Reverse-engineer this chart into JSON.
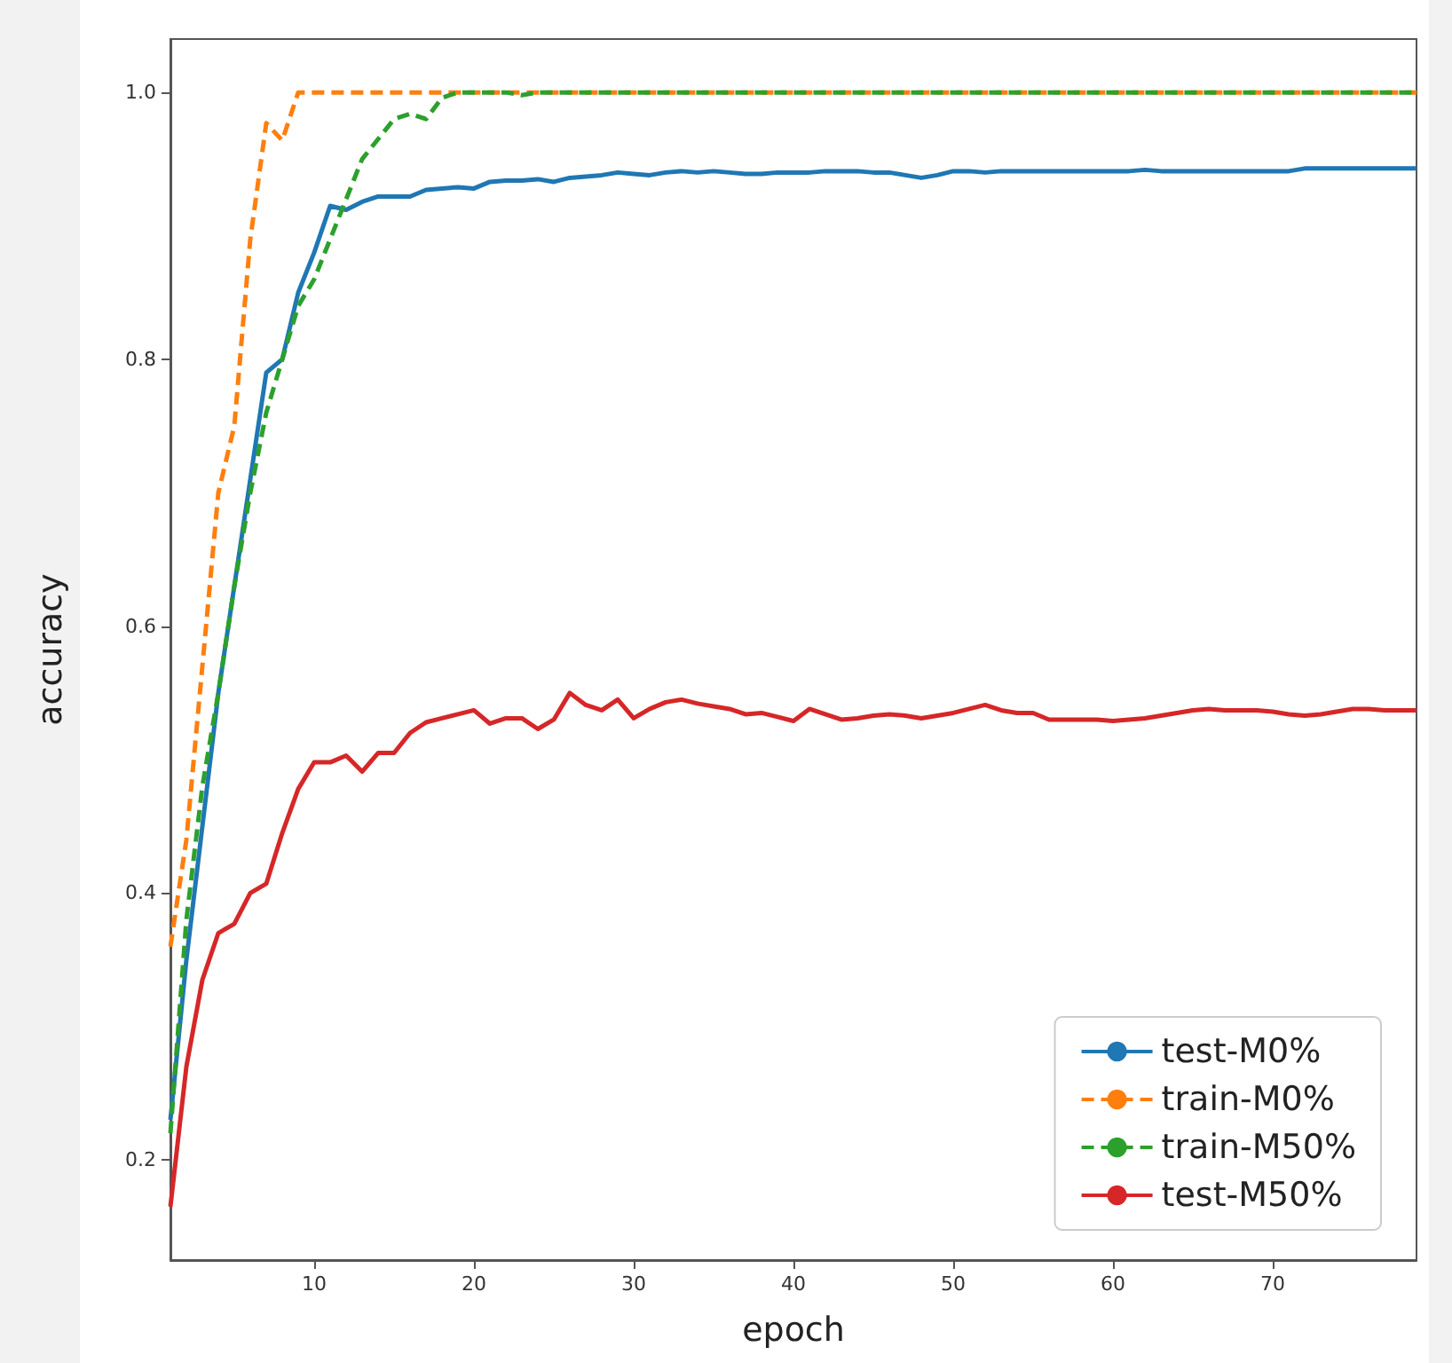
{
  "chart_data": {
    "type": "line",
    "xlabel": "epoch",
    "ylabel": "accuracy",
    "x": [
      1,
      2,
      3,
      4,
      5,
      6,
      7,
      8,
      9,
      10,
      11,
      12,
      13,
      14,
      15,
      16,
      17,
      18,
      19,
      20,
      21,
      22,
      23,
      24,
      25,
      26,
      27,
      28,
      29,
      30,
      31,
      32,
      33,
      34,
      35,
      36,
      37,
      38,
      39,
      40,
      41,
      42,
      43,
      44,
      45,
      46,
      47,
      48,
      49,
      50,
      51,
      52,
      53,
      54,
      55,
      56,
      57,
      58,
      59,
      60,
      61,
      62,
      63,
      64,
      65,
      66,
      67,
      68,
      69,
      70,
      71,
      72,
      73,
      74,
      75,
      76,
      77,
      78,
      79
    ],
    "xlim": [
      1,
      79
    ],
    "xticks": [
      10,
      20,
      30,
      40,
      50,
      60,
      70
    ],
    "ylim": [
      0.125,
      1.04
    ],
    "yticks": [
      0.2,
      0.4,
      0.6,
      0.8,
      {
        "value": 1.0,
        "label": "1.0"
      }
    ],
    "grid": false,
    "legend": "bottom right",
    "marker": "none",
    "series": [
      {
        "name": "test-M0%",
        "color": "#1f77b4",
        "line_style": "solid",
        "values": [
          0.23,
          0.35,
          0.45,
          0.55,
          0.63,
          0.71,
          0.79,
          0.8,
          0.85,
          0.88,
          0.915,
          0.912,
          0.918,
          0.922,
          0.922,
          0.922,
          0.927,
          0.928,
          0.929,
          0.928,
          0.933,
          0.934,
          0.934,
          0.935,
          0.933,
          0.936,
          0.937,
          0.938,
          0.94,
          0.939,
          0.938,
          0.94,
          0.941,
          0.94,
          0.941,
          0.94,
          0.939,
          0.939,
          0.94,
          0.94,
          0.94,
          0.941,
          0.941,
          0.941,
          0.94,
          0.94,
          0.938,
          0.936,
          0.938,
          0.941,
          0.941,
          0.94,
          0.941,
          0.941,
          0.941,
          0.941,
          0.941,
          0.941,
          0.941,
          0.941,
          0.941,
          0.942,
          0.941,
          0.941,
          0.941,
          0.941,
          0.941,
          0.941,
          0.941,
          0.941,
          0.941,
          0.943,
          0.943,
          0.943,
          0.943,
          0.943,
          0.943,
          0.943,
          0.943
        ]
      },
      {
        "name": "train-M0%",
        "color": "#ff7f0e",
        "line_style": "dashed",
        "values": [
          0.36,
          0.44,
          0.57,
          0.7,
          0.75,
          0.89,
          0.977,
          0.964,
          1.0,
          1.0,
          1.0,
          1.0,
          1.0,
          1.0,
          1.0,
          1.0,
          1.0,
          1.0,
          1.0,
          1.0,
          1.0,
          1.0,
          1.0,
          1.0,
          1.0,
          1.0,
          1.0,
          1.0,
          1.0,
          1.0,
          1.0,
          1.0,
          1.0,
          1.0,
          1.0,
          1.0,
          1.0,
          1.0,
          1.0,
          1.0,
          1.0,
          1.0,
          1.0,
          1.0,
          1.0,
          1.0,
          1.0,
          1.0,
          1.0,
          1.0,
          1.0,
          1.0,
          1.0,
          1.0,
          1.0,
          1.0,
          1.0,
          1.0,
          1.0,
          1.0,
          1.0,
          1.0,
          1.0,
          1.0,
          1.0,
          1.0,
          1.0,
          1.0,
          1.0,
          1.0,
          1.0,
          1.0,
          1.0,
          1.0,
          1.0,
          1.0,
          1.0,
          1.0,
          1.0
        ]
      },
      {
        "name": "train-M50%",
        "color": "#2ca02c",
        "line_style": "dashed",
        "values": [
          0.22,
          0.38,
          0.48,
          0.55,
          0.63,
          0.7,
          0.76,
          0.8,
          0.84,
          0.86,
          0.89,
          0.92,
          0.95,
          0.965,
          0.98,
          0.984,
          0.98,
          0.996,
          1.0,
          1.0,
          1.0,
          1.0,
          0.998,
          1.0,
          1.0,
          1.0,
          1.0,
          1.0,
          1.0,
          1.0,
          1.0,
          1.0,
          1.0,
          1.0,
          1.0,
          1.0,
          1.0,
          1.0,
          1.0,
          1.0,
          1.0,
          1.0,
          1.0,
          1.0,
          1.0,
          1.0,
          1.0,
          1.0,
          1.0,
          1.0,
          1.0,
          1.0,
          1.0,
          1.0,
          1.0,
          1.0,
          1.0,
          1.0,
          1.0,
          1.0,
          1.0,
          1.0,
          1.0,
          1.0,
          1.0,
          1.0,
          1.0,
          1.0,
          1.0,
          1.0,
          1.0,
          1.0,
          1.0,
          1.0,
          1.0,
          1.0,
          1.0,
          1.0,
          1.0
        ]
      },
      {
        "name": "test-M50%",
        "color": "#d62728",
        "line_style": "solid",
        "values": [
          0.165,
          0.27,
          0.335,
          0.37,
          0.377,
          0.4,
          0.407,
          0.445,
          0.478,
          0.498,
          0.498,
          0.503,
          0.491,
          0.505,
          0.505,
          0.52,
          0.528,
          0.531,
          0.534,
          0.537,
          0.527,
          0.531,
          0.531,
          0.523,
          0.53,
          0.55,
          0.541,
          0.537,
          0.545,
          0.531,
          0.538,
          0.543,
          0.545,
          0.542,
          0.54,
          0.538,
          0.534,
          0.535,
          0.532,
          0.529,
          0.538,
          0.534,
          0.53,
          0.531,
          0.533,
          0.534,
          0.533,
          0.531,
          0.533,
          0.535,
          0.538,
          0.541,
          0.537,
          0.535,
          0.535,
          0.53,
          0.53,
          0.53,
          0.53,
          0.529,
          0.53,
          0.531,
          0.533,
          0.535,
          0.537,
          0.538,
          0.537,
          0.537,
          0.537,
          0.536,
          0.534,
          0.533,
          0.534,
          0.536,
          0.538,
          0.538,
          0.537,
          0.537,
          0.537
        ]
      }
    ]
  }
}
